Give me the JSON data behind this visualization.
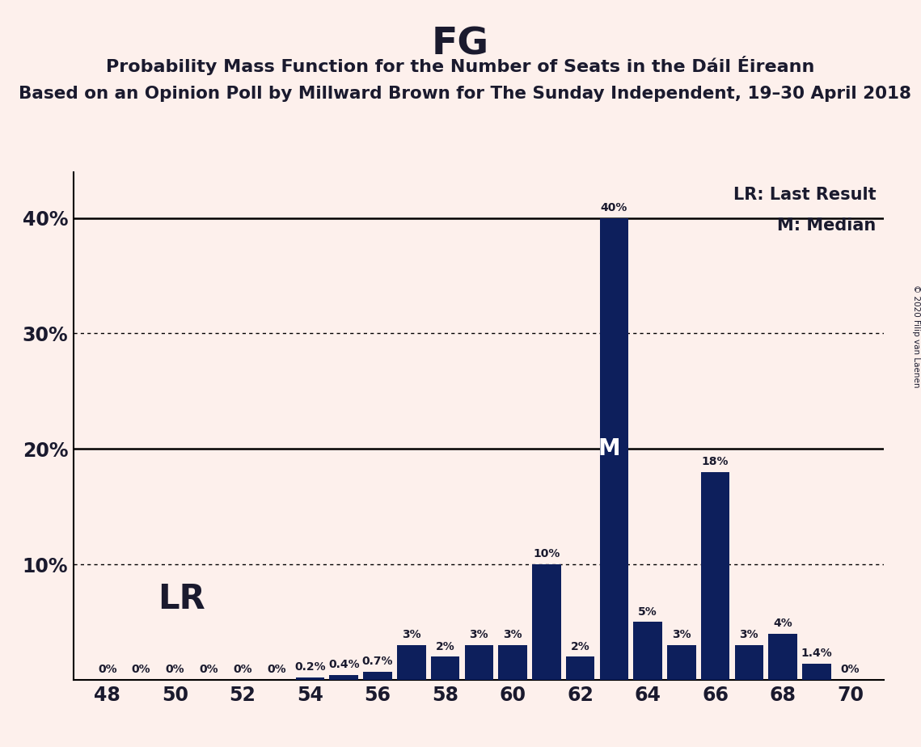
{
  "title": "FG",
  "subtitle": "Probability Mass Function for the Number of Seats in the Dáil Éireann",
  "subtitle2": "Based on an Opinion Poll by Millward Brown for The Sunday Independent, 19–30 April 2018",
  "copyright": "© 2020 Filip van Laenen",
  "seats": [
    48,
    49,
    50,
    51,
    52,
    53,
    54,
    55,
    56,
    57,
    58,
    59,
    60,
    61,
    62,
    63,
    64,
    65,
    66,
    67,
    68,
    69,
    70
  ],
  "probabilities": [
    0.0,
    0.0,
    0.0,
    0.0,
    0.0,
    0.0,
    0.2,
    0.4,
    0.7,
    3.0,
    2.0,
    3.0,
    3.0,
    10.0,
    2.0,
    40.0,
    5.0,
    3.0,
    18.0,
    3.0,
    4.0,
    1.4,
    0.0
  ],
  "bar_color": "#0d1f5c",
  "background_color": "#fdf0ec",
  "text_color": "#1a1a2e",
  "LR_seat": 56,
  "median_seat": 63,
  "solid_gridlines": [
    20.0,
    40.0
  ],
  "dotted_gridlines": [
    10.0,
    30.0
  ],
  "xtick_positions": [
    48,
    50,
    52,
    54,
    56,
    58,
    60,
    62,
    64,
    66,
    68,
    70
  ],
  "legend_lr": "LR: Last Result",
  "legend_m": "M: Median",
  "lr_label": "LR",
  "m_label": "M",
  "bar_width": 0.85,
  "ylim_max": 44,
  "xlim_min": 47.0,
  "xlim_max": 71.0
}
